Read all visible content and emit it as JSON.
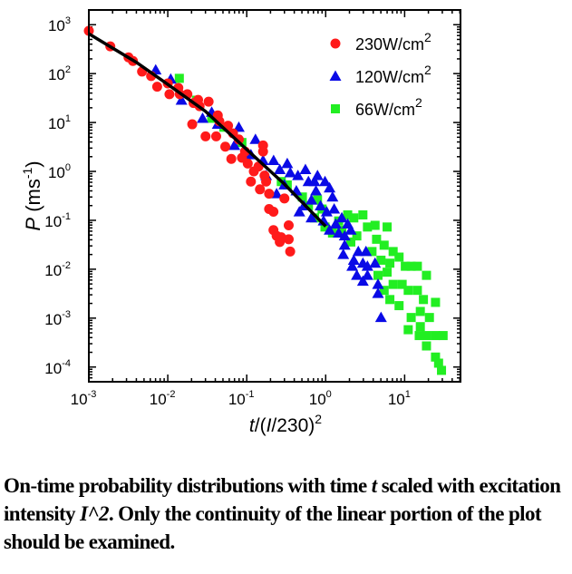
{
  "chart_data": {
    "type": "scatter",
    "title": "",
    "xlabel": {
      "var": "t",
      "rest": "/(",
      "var2": "I",
      "rest2": "/230)",
      "sup": "2"
    },
    "ylabel": {
      "var": "P",
      "rest": " (ms",
      "sup": "-1",
      "close": ")"
    },
    "xscale": "log",
    "yscale": "log",
    "xlim": [
      0.001,
      51
    ],
    "ylim": [
      5e-05,
      2000
    ],
    "xticks": [
      {
        "exp": "-3",
        "v": 0.001
      },
      {
        "exp": "-2",
        "v": 0.01
      },
      {
        "exp": "-1",
        "v": 0.1
      },
      {
        "exp": "0",
        "v": 1
      },
      {
        "exp": "1",
        "v": 10
      }
    ],
    "yticks": [
      {
        "exp": "3",
        "v": 1000
      },
      {
        "exp": "2",
        "v": 100
      },
      {
        "exp": "1",
        "v": 10
      },
      {
        "exp": "0",
        "v": 1
      },
      {
        "exp": "-1",
        "v": 0.1
      },
      {
        "exp": "-2",
        "v": 0.01
      },
      {
        "exp": "-3",
        "v": 0.001
      },
      {
        "exp": "-4",
        "v": 0.0001
      }
    ],
    "legend_position": "top-right",
    "series": [
      {
        "name": "230W/cm",
        "sup": "2",
        "marker": "circle",
        "color": "#ff1a1a",
        "points": [
          [
            0.001,
            750
          ],
          [
            0.00187,
            360
          ],
          [
            0.00318,
            215
          ],
          [
            0.00362,
            181
          ],
          [
            0.00472,
            110
          ],
          [
            0.00615,
            89
          ],
          [
            0.00734,
            54
          ],
          [
            0.01,
            63
          ],
          [
            0.0105,
            38
          ],
          [
            0.0136,
            51
          ],
          [
            0.0142,
            38
          ],
          [
            0.0177,
            38
          ],
          [
            0.0212,
            25
          ],
          [
            0.0242,
            29
          ],
          [
            0.0253,
            21.5
          ],
          [
            0.0329,
            26.7
          ],
          [
            0.0204,
            9.2
          ],
          [
            0.0301,
            5.2
          ],
          [
            0.041,
            5.2
          ],
          [
            0.043,
            14
          ],
          [
            0.045,
            10.6
          ],
          [
            0.058,
            8.6
          ],
          [
            0.0535,
            3.2
          ],
          [
            0.0638,
            1.8
          ],
          [
            0.067,
            6
          ],
          [
            0.0794,
            4.5
          ],
          [
            0.087,
            1.9
          ],
          [
            0.095,
            2.55
          ],
          [
            0.103,
            1.45
          ],
          [
            0.113,
            0.62
          ],
          [
            0.123,
            1.0
          ],
          [
            0.141,
            1.26
          ],
          [
            0.147,
            0.43
          ],
          [
            0.161,
            3.4
          ],
          [
            0.161,
            2.55
          ],
          [
            0.168,
            0.82
          ],
          [
            0.176,
            0.62
          ],
          [
            0.192,
            0.35
          ],
          [
            0.192,
            0.17
          ],
          [
            0.218,
            0.15
          ],
          [
            0.218,
            0.063
          ],
          [
            0.239,
            0.048
          ],
          [
            0.262,
            0.036
          ],
          [
            0.273,
            0.045
          ],
          [
            0.3,
            0.28
          ],
          [
            0.34,
            0.041
          ],
          [
            0.34,
            0.079
          ],
          [
            0.355,
            0.023
          ]
        ]
      },
      {
        "name": "120W/cm",
        "sup": "2",
        "marker": "triangle",
        "color": "#0a0ae6",
        "points": [
          [
            0.00703,
            119
          ],
          [
            0.0109,
            77
          ],
          [
            0.0149,
            28.6
          ],
          [
            0.0276,
            12.2
          ],
          [
            0.036,
            16.2
          ],
          [
            0.0429,
            9.2
          ],
          [
            0.0794,
            8.0
          ],
          [
            0.0697,
            3.4
          ],
          [
            0.129,
            4.5
          ],
          [
            0.113,
            2.2
          ],
          [
            0.161,
            1.67
          ],
          [
            0.176,
            0.82
          ],
          [
            0.219,
            1.67
          ],
          [
            0.262,
            1.09
          ],
          [
            0.326,
            1.45
          ],
          [
            0.239,
            0.35
          ],
          [
            0.299,
            0.53
          ],
          [
            0.356,
            0.94
          ],
          [
            0.445,
            0.82
          ],
          [
            0.554,
            1.09
          ],
          [
            0.605,
            0.62
          ],
          [
            0.722,
            0.62
          ],
          [
            0.788,
            0.82
          ],
          [
            0.425,
            0.4
          ],
          [
            0.464,
            0.149
          ],
          [
            0.53,
            0.198
          ],
          [
            0.66,
            0.26
          ],
          [
            0.753,
            0.4
          ],
          [
            0.98,
            0.62
          ],
          [
            1.12,
            0.46
          ],
          [
            0.86,
            0.198
          ],
          [
            1.03,
            0.149
          ],
          [
            1.22,
            0.3
          ],
          [
            1.28,
            0.17
          ],
          [
            0.66,
            0.112
          ],
          [
            0.94,
            0.097
          ],
          [
            1.12,
            0.063
          ],
          [
            1.34,
            0.084
          ],
          [
            1.46,
            0.055
          ],
          [
            1.74,
            0.048
          ],
          [
            1.6,
            0.112
          ],
          [
            1.74,
            0.031
          ],
          [
            1.9,
            0.084
          ],
          [
            2.08,
            0.063
          ],
          [
            1.67,
            0.02
          ],
          [
            2.17,
            0.0115
          ],
          [
            2.59,
            0.023
          ],
          [
            2.27,
            0.0153
          ],
          [
            2.96,
            0.0133
          ],
          [
            3.24,
            0.023
          ],
          [
            3.38,
            0.0115
          ],
          [
            2.48,
            0.0075
          ],
          [
            2.96,
            0.0057
          ],
          [
            3.38,
            0.0075
          ],
          [
            4.22,
            0.0133
          ],
          [
            4.6,
            0.0049
          ],
          [
            4.6,
            0.0032
          ],
          [
            5.02,
            0.00103
          ]
        ]
      },
      {
        "name": "66W/cm",
        "sup": "2",
        "marker": "square",
        "color": "#22ee22",
        "points": [
          [
            0.014,
            80
          ],
          [
            0.0231,
            28.6
          ],
          [
            0.036,
            12.2
          ],
          [
            0.0512,
            8.0
          ],
          [
            0.0869,
            3.9
          ],
          [
            0.274,
            0.62
          ],
          [
            0.326,
            0.53
          ],
          [
            0.507,
            0.3
          ],
          [
            0.605,
            0.198
          ],
          [
            0.788,
            0.26
          ],
          [
            0.722,
            0.112
          ],
          [
            0.9,
            0.17
          ],
          [
            0.98,
            0.073
          ],
          [
            1.22,
            0.055
          ],
          [
            1.46,
            0.097
          ],
          [
            1.9,
            0.129
          ],
          [
            2.27,
            0.112
          ],
          [
            2.96,
            0.129
          ],
          [
            1.6,
            0.063
          ],
          [
            2.08,
            0.036
          ],
          [
            2.48,
            0.048
          ],
          [
            3.38,
            0.073
          ],
          [
            4.22,
            0.079
          ],
          [
            6.0,
            0.073
          ],
          [
            4.41,
            0.041
          ],
          [
            5.5,
            0.031
          ],
          [
            7.15,
            0.023
          ],
          [
            3.86,
            0.023
          ],
          [
            5.02,
            0.0153
          ],
          [
            6.5,
            0.0133
          ],
          [
            8.5,
            0.0177
          ],
          [
            10.2,
            0.0115
          ],
          [
            12.1,
            0.0115
          ],
          [
            14.5,
            0.0115
          ],
          [
            18.9,
            0.0075
          ],
          [
            4.6,
            0.0075
          ],
          [
            6.0,
            0.0087
          ],
          [
            7.15,
            0.0049
          ],
          [
            5.5,
            0.0037
          ],
          [
            6.5,
            0.0024
          ],
          [
            9.3,
            0.0049
          ],
          [
            11.1,
            0.0037
          ],
          [
            14.5,
            0.0037
          ],
          [
            17.3,
            0.0024
          ],
          [
            24.6,
            0.0021
          ],
          [
            8.5,
            0.0018
          ],
          [
            12.1,
            0.00103
          ],
          [
            15.8,
            0.00137
          ],
          [
            20.6,
            0.00103
          ],
          [
            11.1,
            0.00058
          ],
          [
            15.8,
            0.00067
          ],
          [
            15.3,
            0.00044
          ],
          [
            18.9,
            0.00044
          ],
          [
            24.6,
            0.00044
          ],
          [
            30.7,
            0.00044
          ],
          [
            18.9,
            0.00027
          ],
          [
            24.6,
            0.00016
          ],
          [
            26.9,
            0.00012
          ],
          [
            29.3,
            8.55e-05
          ]
        ]
      }
    ],
    "fit_line": {
      "color": "#000000",
      "points": [
        [
          0.001,
          650
        ],
        [
          0.004,
          170
        ],
        [
          0.01,
          60
        ],
        [
          0.03,
          17
        ],
        [
          0.1,
          2.8
        ],
        [
          0.3,
          0.55
        ],
        [
          1,
          0.075
        ]
      ]
    }
  },
  "caption": {
    "part1": "On-time probability distributions with time ",
    "t": "t",
    "part2": " scaled with excitation intensity ",
    "i2": "I^2",
    "part3": ". Only the continuity of the linear portion of the plot should be examined."
  }
}
